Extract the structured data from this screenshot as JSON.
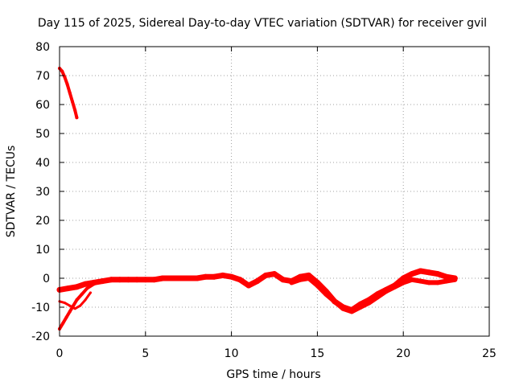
{
  "chart_data": {
    "type": "line",
    "title": "Day 115 of 2025, Sidereal Day-to-day VTEC variation (SDTVAR) for receiver gvil",
    "xlabel": "GPS time / hours",
    "ylabel": "SDTVAR / TECUs",
    "xlim": [
      0,
      25
    ],
    "ylim": [
      -20,
      80
    ],
    "xticks": [
      0,
      5,
      10,
      15,
      20,
      25
    ],
    "yticks": [
      -20,
      -10,
      0,
      10,
      20,
      30,
      40,
      50,
      60,
      70,
      80
    ],
    "grid": true,
    "series_color": "#ff0000",
    "series": [
      {
        "name": "early-high-track",
        "thickness": 4,
        "x": [
          0.0,
          0.15,
          0.3,
          0.45,
          0.6,
          0.75,
          0.9,
          1.0
        ],
        "y": [
          72.5,
          71.5,
          69.5,
          67.0,
          64.0,
          61.0,
          58.0,
          55.5
        ]
      },
      {
        "name": "rising-from-minus-18",
        "thickness": 4,
        "x": [
          0.0,
          0.2,
          0.4,
          0.6,
          0.8,
          1.0,
          1.3,
          1.6,
          2.0,
          2.4,
          2.8
        ],
        "y": [
          -17.5,
          -15.5,
          -13.5,
          -11.5,
          -9.5,
          -7.5,
          -5.5,
          -3.5,
          -2.0,
          -1.0,
          -0.5
        ]
      },
      {
        "name": "short-dip-near-zero",
        "thickness": 3,
        "x": [
          0.0,
          0.3,
          0.6,
          0.9,
          1.2,
          1.5,
          1.8
        ],
        "y": [
          -8.0,
          -8.5,
          -9.5,
          -10.5,
          -9.5,
          -7.5,
          -5.0
        ]
      },
      {
        "name": "main-track",
        "thickness": 7,
        "x": [
          0.0,
          0.5,
          1.0,
          1.5,
          2.0,
          2.5,
          3.0,
          3.5,
          4.0,
          4.5,
          5.0,
          5.5,
          6.0,
          6.5,
          7.0,
          7.5,
          8.0,
          8.5,
          9.0,
          9.5,
          10.0,
          10.5,
          11.0,
          11.5,
          12.0,
          12.5,
          13.0,
          13.5,
          14.0,
          14.5,
          15.0,
          15.5,
          16.0,
          16.5,
          17.0,
          17.5,
          18.0,
          18.5,
          19.0,
          19.5,
          20.0,
          20.5,
          21.0,
          21.5,
          22.0,
          22.5,
          23.0
        ],
        "y": [
          -4.0,
          -3.5,
          -3.0,
          -2.0,
          -1.5,
          -1.0,
          -0.5,
          -0.5,
          -0.5,
          -0.5,
          -0.5,
          -0.5,
          0.0,
          0.0,
          0.0,
          0.0,
          0.0,
          0.5,
          0.5,
          1.0,
          0.5,
          -0.5,
          -2.5,
          -1.0,
          1.0,
          1.5,
          -0.5,
          -1.0,
          0.5,
          1.0,
          -1.5,
          -4.5,
          -8.0,
          -10.0,
          -11.0,
          -9.0,
          -7.5,
          -5.5,
          -4.0,
          -2.5,
          0.0,
          1.5,
          2.5,
          2.0,
          1.5,
          0.5,
          0.0
        ]
      },
      {
        "name": "secondary-track",
        "thickness": 6,
        "x": [
          13.5,
          14.0,
          14.5,
          15.0,
          15.5,
          16.0,
          16.5,
          17.0,
          17.5,
          18.0,
          18.5,
          19.0,
          19.5,
          20.0,
          20.5,
          21.0,
          21.5,
          22.0,
          22.5,
          23.0
        ],
        "y": [
          -1.5,
          -0.5,
          0.0,
          -2.5,
          -5.5,
          -8.0,
          -10.5,
          -11.5,
          -10.0,
          -8.5,
          -6.5,
          -4.5,
          -3.0,
          -1.5,
          -0.5,
          -1.0,
          -1.5,
          -1.5,
          -1.0,
          -0.5
        ]
      }
    ]
  }
}
